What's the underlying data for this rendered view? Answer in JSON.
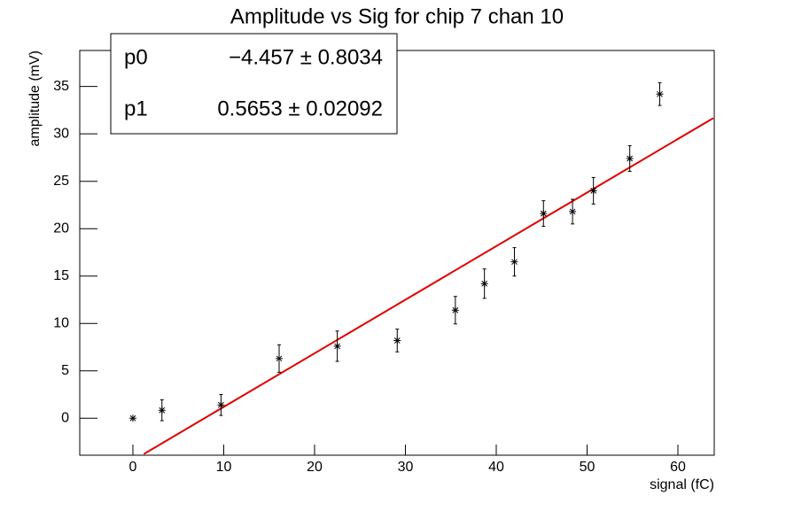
{
  "chart_data": {
    "type": "scatter",
    "title": "Amplitude vs Sig for chip 7 chan 10",
    "x_label": "signal (fC)",
    "y_label": "amplitude (mV)",
    "series": [
      {
        "color": "#000000",
        "x": [
          0,
          3.2,
          9.7,
          16.1,
          22.5,
          29.1,
          35.5,
          38.7,
          42.0,
          45.2,
          48.4,
          50.7,
          54.7,
          58.0
        ],
        "values": [
          0,
          0.84,
          1.4,
          6.3,
          7.6,
          8.2,
          11.4,
          14.2,
          16.5,
          21.6,
          21.8,
          24.0,
          27.4,
          34.2
        ],
        "errors": [
          0,
          1.1,
          1.1,
          1.45,
          1.6,
          1.2,
          1.45,
          1.55,
          1.5,
          1.35,
          1.3,
          1.4,
          1.35,
          1.2
        ]
      }
    ],
    "fit": {
      "color": "#e00000",
      "xlim": [
        1.2,
        63.9
      ],
      "params": [
        {
          "name": "p0",
          "value": -4.457,
          "error": 0.8034,
          "label": "−4.457 ± 0.8034"
        },
        {
          "name": "p1",
          "value": 0.5653,
          "error": 0.02092,
          "label": "0.5653 ± 0.02092"
        }
      ]
    },
    "xlim": [
      -5.85,
      64
    ],
    "xticks": [
      0,
      10,
      20,
      30,
      40,
      50,
      60
    ],
    "ylim": [
      -3.9,
      38.8
    ],
    "yticks": [
      0,
      5,
      10,
      15,
      20,
      25,
      30,
      35
    ]
  }
}
